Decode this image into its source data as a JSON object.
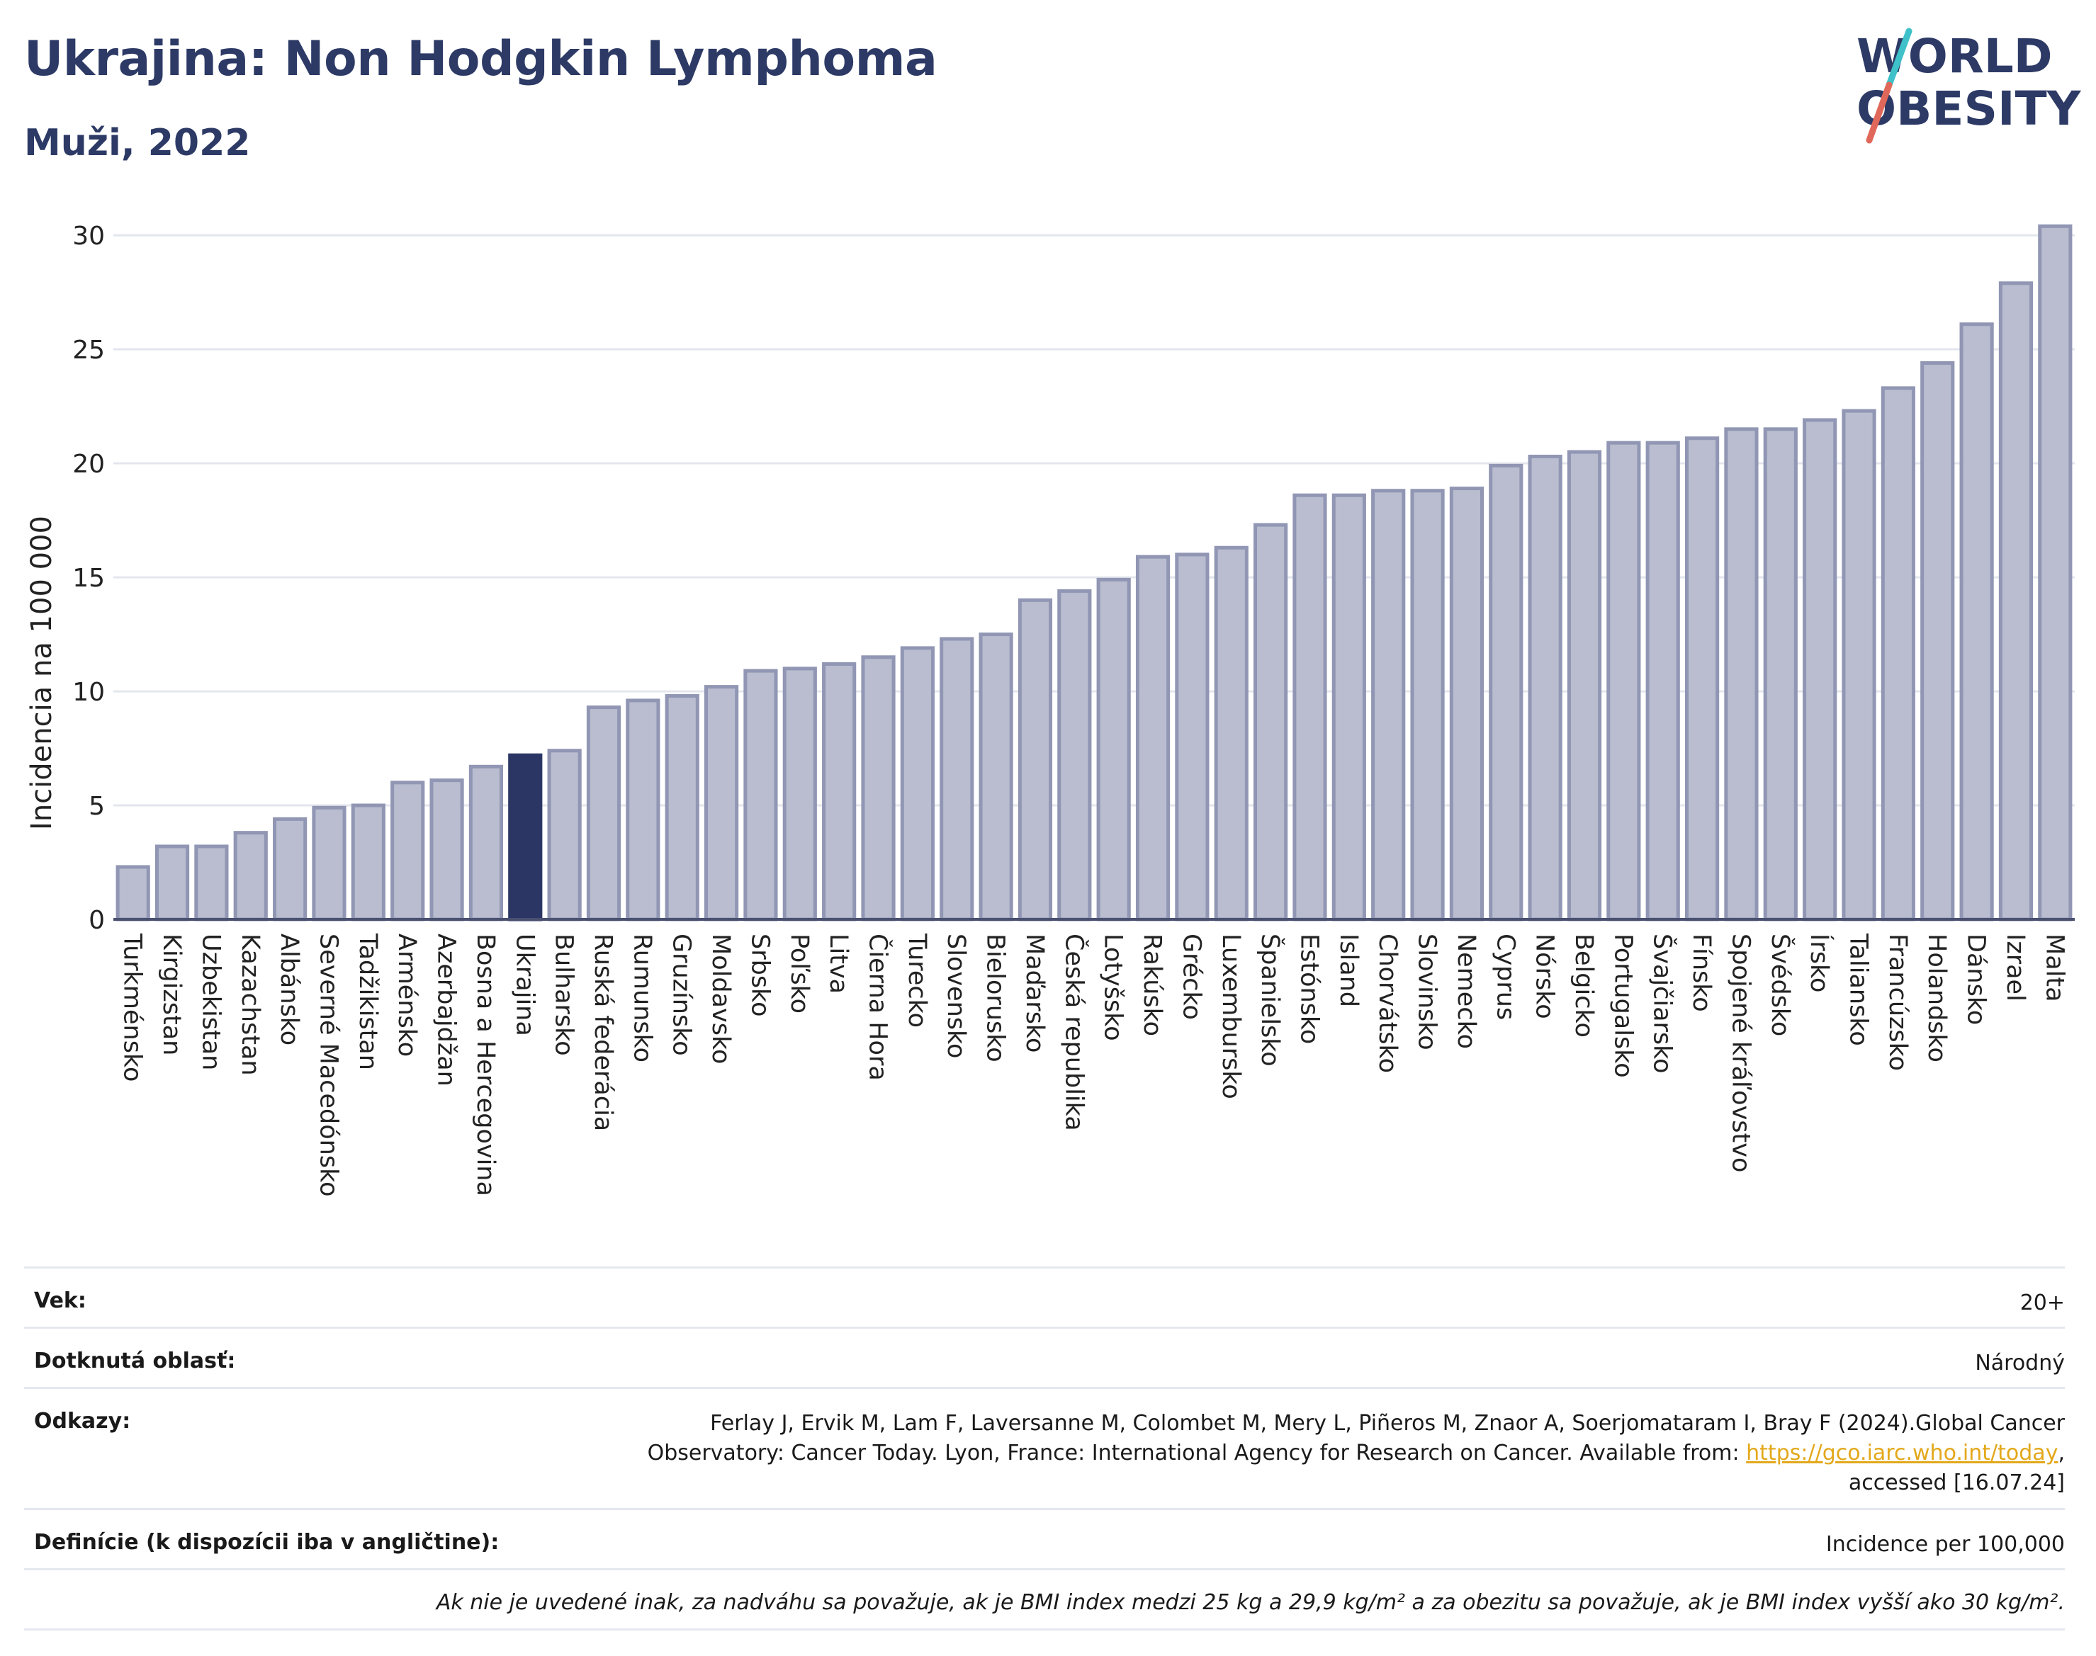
{
  "header": {
    "title": "Ukrajina: Non Hodgkin Lymphoma",
    "subtitle": "Muži, 2022",
    "logo_line1": "WORLD",
    "logo_line2": "OBESITY"
  },
  "colors": {
    "bar": "#b9bdcf",
    "bar_border": "#9096b3",
    "highlight": "#2b3665",
    "grid": "#e4e6ee",
    "axis": "#4a5070",
    "logo_slash_a": "#3ec1c9",
    "logo_slash_b": "#e0685a"
  },
  "chart_data": {
    "type": "bar",
    "ylabel": "Incidencia na 100 000",
    "ylim": [
      0,
      31
    ],
    "yticks": [
      0,
      5,
      10,
      15,
      20,
      25,
      30
    ],
    "grid": true,
    "highlight": "Ukrajina",
    "categories": [
      "Turkménsko",
      "Kirgizstan",
      "Uzbekistan",
      "Kazachstan",
      "Albánsko",
      "Severné Macedónsko",
      "Tadžikistan",
      "Arménsko",
      "Azerbajdžan",
      "Bosna a Hercegovina",
      "Ukrajina",
      "Bulharsko",
      "Ruská federácia",
      "Rumunsko",
      "Gruzínsko",
      "Moldavsko",
      "Srbsko",
      "Poľsko",
      "Litva",
      "Čierna Hora",
      "Turecko",
      "Slovensko",
      "Bielorusko",
      "Maďarsko",
      "Česká republika",
      "Lotyšsko",
      "Rakúsko",
      "Grécko",
      "Luxembursko",
      "Španielsko",
      "Estónsko",
      "Island",
      "Chorvátsko",
      "Slovinsko",
      "Nemecko",
      "Cyprus",
      "Nórsko",
      "Belgicko",
      "Portugalsko",
      "Švajčiarsko",
      "Fínsko",
      "Spojené kráľovstvo",
      "Švédsko",
      "Írsko",
      "Taliansko",
      "Francúzsko",
      "Holandsko",
      "Dánsko",
      "Izrael",
      "Malta"
    ],
    "values": [
      2.3,
      3.2,
      3.2,
      3.8,
      4.4,
      4.9,
      5.0,
      6.0,
      6.1,
      6.7,
      7.2,
      7.4,
      9.3,
      9.6,
      9.8,
      10.2,
      10.9,
      11.0,
      11.2,
      11.5,
      11.9,
      12.3,
      12.5,
      14.0,
      14.4,
      14.9,
      15.9,
      16.0,
      16.3,
      17.3,
      18.6,
      18.6,
      18.8,
      18.8,
      18.9,
      19.9,
      20.3,
      20.5,
      20.9,
      20.9,
      21.1,
      21.5,
      21.5,
      21.9,
      22.3,
      23.3,
      24.4,
      26.1,
      27.9,
      30.4
    ]
  },
  "info": {
    "age_label": "Vek:",
    "age_value": "20+",
    "area_label": "Dotknutá oblasť:",
    "area_value": "Národný",
    "refs_label": "Odkazy:",
    "refs_line1": "Ferlay J, Ervik M, Lam F, Laversanne M, Colombet M, Mery L, Piñeros M, Znaor A, Soerjomataram I, Bray F (2024).Global Cancer",
    "refs_line2_pre": "Observatory: Cancer Today. Lyon, France: International Agency for Research on Cancer. Available from: ",
    "refs_link": "https://gco.iarc.who.int/today",
    "refs_line2_post": ",",
    "refs_line3": "accessed [16.07.24]",
    "defs_label": "Definície (k dispozícii iba v angličtine):",
    "defs_value": "Incidence per 100,000",
    "note": "Ak nie je uvedené inak, za nadváhu sa považuje, ak je BMI index medzi 25 kg a 29,9 kg/m² a za obezitu sa považuje, ak je BMI index vyšší ako 30 kg/m²."
  }
}
